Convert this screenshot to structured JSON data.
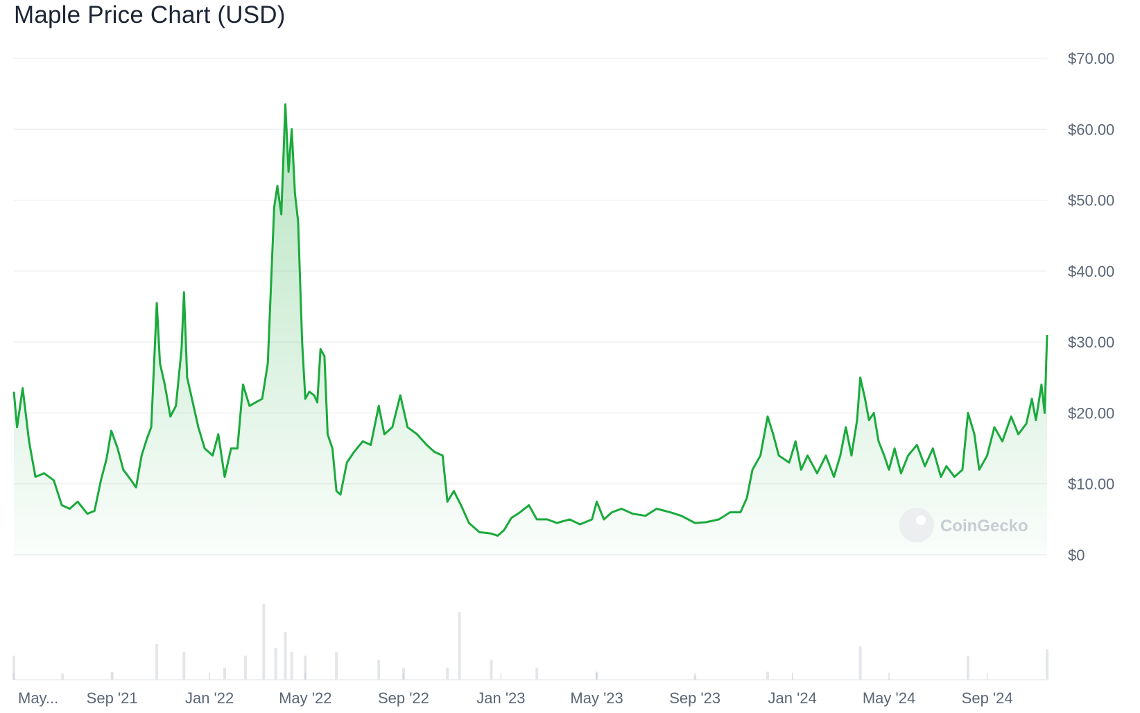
{
  "title": "Maple Price Chart (USD)",
  "watermark": "CoinGecko",
  "colors": {
    "line": "#1aaa3c",
    "fill": "#1aaa3c",
    "grid": "#e6e8eb",
    "volume": "#e4e7ea",
    "text": "#5b6676"
  },
  "chart_data": {
    "type": "area",
    "title": "Maple Price Chart (USD)",
    "xlabel": "",
    "ylabel": "",
    "ylim": [
      0,
      70
    ],
    "y_ticks": [
      "$0",
      "$10.00",
      "$20.00",
      "$30.00",
      "$40.00",
      "$50.00",
      "$60.00",
      "$70.00"
    ],
    "y_tick_values": [
      0,
      10,
      20,
      30,
      40,
      50,
      60,
      70
    ],
    "x_ticks": [
      "May...",
      "Sep '21",
      "Jan '22",
      "May '22",
      "Sep '22",
      "Jan '23",
      "May '23",
      "Sep '23",
      "Jan '24",
      "May '24",
      "Sep '24"
    ],
    "x_tick_dates": [
      "2021-05-01",
      "2021-09-01",
      "2022-01-01",
      "2022-05-01",
      "2022-09-01",
      "2023-01-01",
      "2023-05-01",
      "2023-09-01",
      "2024-01-01",
      "2024-05-01",
      "2024-09-01"
    ],
    "x_range": [
      "2021-05-01",
      "2024-11-15"
    ],
    "grid": true,
    "series": [
      {
        "values": [
          [
            "2021-05-01",
            23.0
          ],
          [
            "2021-05-05",
            18.0
          ],
          [
            "2021-05-12",
            23.5
          ],
          [
            "2021-05-20",
            16.0
          ],
          [
            "2021-05-28",
            11.0
          ],
          [
            "2021-06-08",
            11.5
          ],
          [
            "2021-06-20",
            10.5
          ],
          [
            "2021-06-30",
            7.0
          ],
          [
            "2021-07-10",
            6.5
          ],
          [
            "2021-07-20",
            7.5
          ],
          [
            "2021-08-01",
            5.8
          ],
          [
            "2021-08-10",
            6.2
          ],
          [
            "2021-08-18",
            10.5
          ],
          [
            "2021-08-25",
            13.5
          ],
          [
            "2021-08-31",
            17.5
          ],
          [
            "2021-09-08",
            15.0
          ],
          [
            "2021-09-15",
            12.0
          ],
          [
            "2021-09-25",
            10.5
          ],
          [
            "2021-10-01",
            9.5
          ],
          [
            "2021-10-08",
            14.0
          ],
          [
            "2021-10-15",
            16.5
          ],
          [
            "2021-10-20",
            18.0
          ],
          [
            "2021-10-27",
            35.5
          ],
          [
            "2021-10-31",
            27.0
          ],
          [
            "2021-11-06",
            24.0
          ],
          [
            "2021-11-13",
            19.5
          ],
          [
            "2021-11-20",
            21.0
          ],
          [
            "2021-11-27",
            29.0
          ],
          [
            "2021-11-30",
            37.0
          ],
          [
            "2021-12-04",
            25.0
          ],
          [
            "2021-12-10",
            22.0
          ],
          [
            "2021-12-18",
            18.0
          ],
          [
            "2021-12-26",
            15.0
          ],
          [
            "2022-01-05",
            14.0
          ],
          [
            "2022-01-12",
            17.0
          ],
          [
            "2022-01-20",
            11.0
          ],
          [
            "2022-01-28",
            15.0
          ],
          [
            "2022-02-05",
            15.0
          ],
          [
            "2022-02-12",
            24.0
          ],
          [
            "2022-02-20",
            21.0
          ],
          [
            "2022-02-28",
            21.5
          ],
          [
            "2022-03-08",
            22.0
          ],
          [
            "2022-03-15",
            27.0
          ],
          [
            "2022-03-19",
            38.0
          ],
          [
            "2022-03-23",
            49.0
          ],
          [
            "2022-03-27",
            52.0
          ],
          [
            "2022-04-01",
            48.0
          ],
          [
            "2022-04-06",
            63.5
          ],
          [
            "2022-04-10",
            54.0
          ],
          [
            "2022-04-14",
            60.0
          ],
          [
            "2022-04-18",
            51.0
          ],
          [
            "2022-04-22",
            47.0
          ],
          [
            "2022-04-27",
            30.0
          ],
          [
            "2022-05-01",
            22.0
          ],
          [
            "2022-05-06",
            23.0
          ],
          [
            "2022-05-12",
            22.5
          ],
          [
            "2022-05-16",
            21.5
          ],
          [
            "2022-05-20",
            29.0
          ],
          [
            "2022-05-25",
            28.0
          ],
          [
            "2022-05-29",
            17.0
          ],
          [
            "2022-06-04",
            15.0
          ],
          [
            "2022-06-09",
            9.0
          ],
          [
            "2022-06-14",
            8.5
          ],
          [
            "2022-06-22",
            13.0
          ],
          [
            "2022-07-01",
            14.5
          ],
          [
            "2022-07-12",
            16.0
          ],
          [
            "2022-07-22",
            15.5
          ],
          [
            "2022-08-01",
            21.0
          ],
          [
            "2022-08-08",
            17.0
          ],
          [
            "2022-08-18",
            18.0
          ],
          [
            "2022-08-28",
            22.5
          ],
          [
            "2022-09-06",
            18.0
          ],
          [
            "2022-09-18",
            17.0
          ],
          [
            "2022-09-30",
            15.5
          ],
          [
            "2022-10-10",
            14.5
          ],
          [
            "2022-10-20",
            14.0
          ],
          [
            "2022-10-26",
            7.5
          ],
          [
            "2022-11-03",
            9.0
          ],
          [
            "2022-11-12",
            7.0
          ],
          [
            "2022-11-22",
            4.5
          ],
          [
            "2022-12-05",
            3.2
          ],
          [
            "2022-12-20",
            3.0
          ],
          [
            "2022-12-28",
            2.7
          ],
          [
            "2023-01-05",
            3.5
          ],
          [
            "2023-01-14",
            5.2
          ],
          [
            "2023-01-25",
            6.0
          ],
          [
            "2023-02-05",
            7.0
          ],
          [
            "2023-02-15",
            5.0
          ],
          [
            "2023-02-28",
            5.0
          ],
          [
            "2023-03-12",
            4.5
          ],
          [
            "2023-03-28",
            5.0
          ],
          [
            "2023-04-10",
            4.3
          ],
          [
            "2023-04-25",
            5.0
          ],
          [
            "2023-05-01",
            7.5
          ],
          [
            "2023-05-10",
            5.0
          ],
          [
            "2023-05-20",
            6.0
          ],
          [
            "2023-06-01",
            6.5
          ],
          [
            "2023-06-15",
            5.8
          ],
          [
            "2023-07-01",
            5.5
          ],
          [
            "2023-07-15",
            6.5
          ],
          [
            "2023-08-01",
            6.0
          ],
          [
            "2023-08-15",
            5.5
          ],
          [
            "2023-09-01",
            4.5
          ],
          [
            "2023-09-15",
            4.6
          ],
          [
            "2023-10-01",
            5.0
          ],
          [
            "2023-10-15",
            6.0
          ],
          [
            "2023-10-28",
            6.0
          ],
          [
            "2023-11-05",
            8.0
          ],
          [
            "2023-11-12",
            12.0
          ],
          [
            "2023-11-22",
            14.0
          ],
          [
            "2023-12-01",
            19.5
          ],
          [
            "2023-12-08",
            17.0
          ],
          [
            "2023-12-15",
            14.0
          ],
          [
            "2023-12-28",
            13.0
          ],
          [
            "2024-01-05",
            16.0
          ],
          [
            "2024-01-12",
            12.0
          ],
          [
            "2024-01-20",
            14.0
          ],
          [
            "2024-02-01",
            11.5
          ],
          [
            "2024-02-12",
            14.0
          ],
          [
            "2024-02-22",
            11.0
          ],
          [
            "2024-03-01",
            14.0
          ],
          [
            "2024-03-08",
            18.0
          ],
          [
            "2024-03-15",
            14.0
          ],
          [
            "2024-03-22",
            19.0
          ],
          [
            "2024-03-26",
            25.0
          ],
          [
            "2024-04-01",
            22.0
          ],
          [
            "2024-04-06",
            19.0
          ],
          [
            "2024-04-12",
            20.0
          ],
          [
            "2024-04-18",
            16.0
          ],
          [
            "2024-04-25",
            14.0
          ],
          [
            "2024-05-01",
            12.0
          ],
          [
            "2024-05-08",
            15.0
          ],
          [
            "2024-05-16",
            11.5
          ],
          [
            "2024-05-25",
            14.0
          ],
          [
            "2024-06-05",
            15.5
          ],
          [
            "2024-06-15",
            12.5
          ],
          [
            "2024-06-25",
            15.0
          ],
          [
            "2024-07-05",
            11.0
          ],
          [
            "2024-07-12",
            12.5
          ],
          [
            "2024-07-22",
            11.0
          ],
          [
            "2024-08-01",
            12.0
          ],
          [
            "2024-08-08",
            20.0
          ],
          [
            "2024-08-16",
            17.0
          ],
          [
            "2024-08-22",
            12.0
          ],
          [
            "2024-09-01",
            14.0
          ],
          [
            "2024-09-10",
            18.0
          ],
          [
            "2024-09-20",
            16.0
          ],
          [
            "2024-10-01",
            19.5
          ],
          [
            "2024-10-10",
            17.0
          ],
          [
            "2024-10-20",
            18.5
          ],
          [
            "2024-10-27",
            22.0
          ],
          [
            "2024-11-01",
            19.0
          ],
          [
            "2024-11-08",
            24.0
          ],
          [
            "2024-11-12",
            20.0
          ],
          [
            "2024-11-15",
            31.0
          ]
        ]
      }
    ],
    "volume": {
      "values": [
        [
          "2021-05-01",
          0.3
        ],
        [
          "2021-07-01",
          0.08
        ],
        [
          "2021-09-01",
          0.1
        ],
        [
          "2021-10-27",
          0.45
        ],
        [
          "2021-11-30",
          0.35
        ],
        [
          "2022-01-20",
          0.15
        ],
        [
          "2022-02-15",
          0.3
        ],
        [
          "2022-03-10",
          0.95
        ],
        [
          "2022-03-25",
          0.4
        ],
        [
          "2022-04-06",
          0.6
        ],
        [
          "2022-04-14",
          0.35
        ],
        [
          "2022-05-01",
          0.3
        ],
        [
          "2022-06-09",
          0.35
        ],
        [
          "2022-08-01",
          0.25
        ],
        [
          "2022-09-01",
          0.15
        ],
        [
          "2022-10-26",
          0.15
        ],
        [
          "2022-11-10",
          0.85
        ],
        [
          "2022-12-20",
          0.25
        ],
        [
          "2023-02-15",
          0.15
        ],
        [
          "2023-05-01",
          0.1
        ],
        [
          "2023-09-01",
          0.05
        ],
        [
          "2023-12-01",
          0.1
        ],
        [
          "2024-03-26",
          0.42
        ],
        [
          "2024-08-08",
          0.3
        ],
        [
          "2024-11-15",
          0.38
        ]
      ]
    }
  }
}
